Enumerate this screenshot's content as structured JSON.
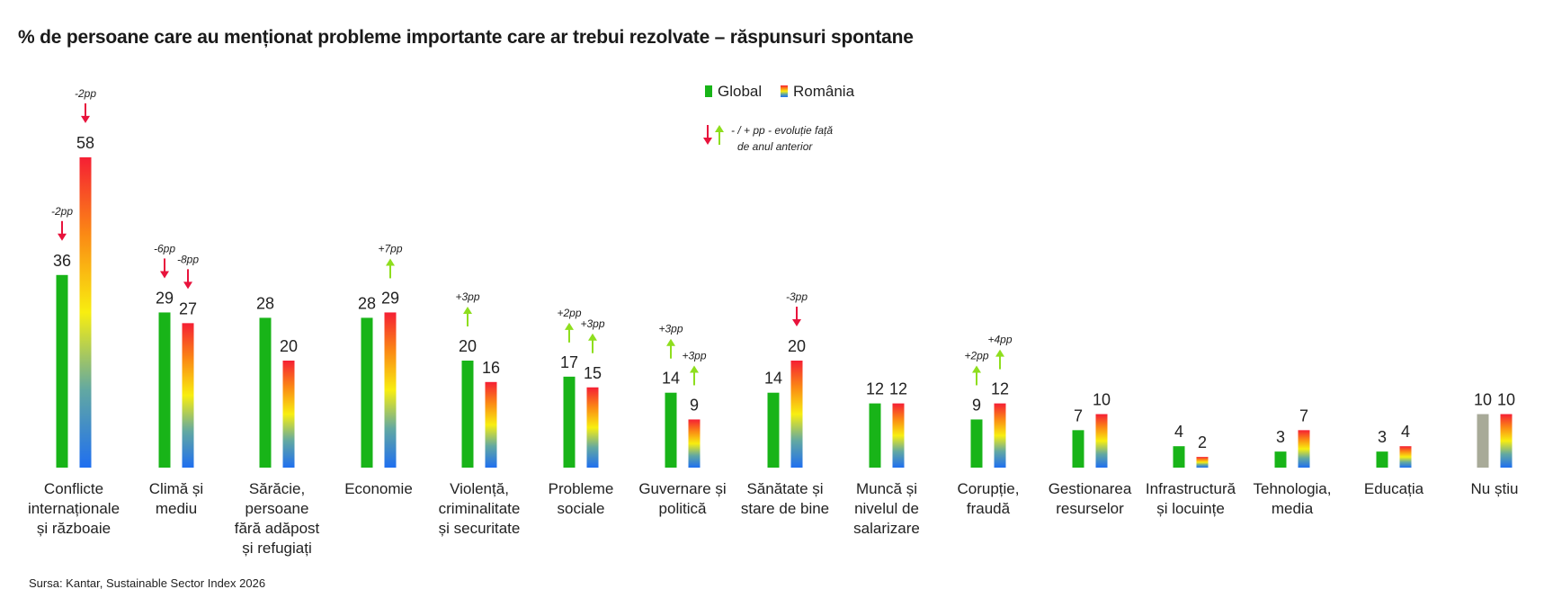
{
  "title": "% de persoane care au menționat probleme importante care ar trebui rezolvate – răspunsuri spontane",
  "source": "Sursa: Kantar, Sustainable Sector Index 2026",
  "legend": {
    "global": "Global",
    "romania": "România",
    "note_line1": "- / + pp - evoluție față",
    "note_line2": "de anul anterior"
  },
  "colors": {
    "global": "#18b418",
    "nu_stiu": "#a8aa98",
    "down_arrow": "#e8133c",
    "up_arrow": "#8ede1e",
    "romania_gradient": [
      "#f51f34",
      "#fb8a14",
      "#f8ee10",
      "#62a8a2",
      "#1f6ff0"
    ]
  },
  "chart_data": {
    "type": "bar",
    "title": "% de persoane care au menționat probleme importante care ar trebui rezolvate – răspunsuri spontane",
    "ylim": [
      0,
      60
    ],
    "grid": false,
    "legend_position": "top-center",
    "categories": [
      {
        "label": [
          "Conflicte",
          "internaționale",
          "și războaie"
        ],
        "global": 36,
        "romania": 58,
        "global_change": "-2pp",
        "romania_change": "-2pp"
      },
      {
        "label": [
          "Climă și",
          "mediu"
        ],
        "global": 29,
        "romania": 27,
        "global_change": "-6pp",
        "romania_change": "-8pp"
      },
      {
        "label": [
          "Sărăcie,",
          "persoane",
          "fără adăpost",
          "și refugiați"
        ],
        "global": 28,
        "romania": 20,
        "global_change": null,
        "romania_change": null
      },
      {
        "label": [
          "Economie"
        ],
        "global": 28,
        "romania": 29,
        "global_change": null,
        "romania_change": "+7pp"
      },
      {
        "label": [
          "Violență,",
          "criminalitate",
          "și securitate"
        ],
        "global": 20,
        "romania": 16,
        "global_change": "+3pp",
        "romania_change": null
      },
      {
        "label": [
          "Probleme",
          "sociale"
        ],
        "global": 17,
        "romania": 15,
        "global_change": "+2pp",
        "romania_change": "+3pp"
      },
      {
        "label": [
          "Guvernare și",
          "politică"
        ],
        "global": 14,
        "romania": 9,
        "global_change": "+3pp",
        "romania_change": "+3pp"
      },
      {
        "label": [
          "Sănătate și",
          "stare de bine"
        ],
        "global": 14,
        "romania": 20,
        "global_change": null,
        "romania_change": "-3pp"
      },
      {
        "label": [
          "Muncă și",
          "nivelul de",
          "salarizare"
        ],
        "global": 12,
        "romania": 12,
        "global_change": null,
        "romania_change": null
      },
      {
        "label": [
          "Corupție,",
          "fraudă"
        ],
        "global": 9,
        "romania": 12,
        "global_change": "+2pp",
        "romania_change": "+4pp"
      },
      {
        "label": [
          "Gestionarea",
          "resurselor"
        ],
        "global": 7,
        "romania": 10,
        "global_change": null,
        "romania_change": null
      },
      {
        "label": [
          "Infrastructură",
          "și locuințe"
        ],
        "global": 4,
        "romania": 2,
        "global_change": null,
        "romania_change": null
      },
      {
        "label": [
          "Tehnologia,",
          "media"
        ],
        "global": 3,
        "romania": 7,
        "global_change": null,
        "romania_change": null
      },
      {
        "label": [
          "Educația"
        ],
        "global": 3,
        "romania": 4,
        "global_change": null,
        "romania_change": null
      },
      {
        "label": [
          "Nu știu"
        ],
        "global": 10,
        "romania": 10,
        "global_change": null,
        "romania_change": null,
        "global_color_key": "nu_stiu"
      }
    ]
  }
}
